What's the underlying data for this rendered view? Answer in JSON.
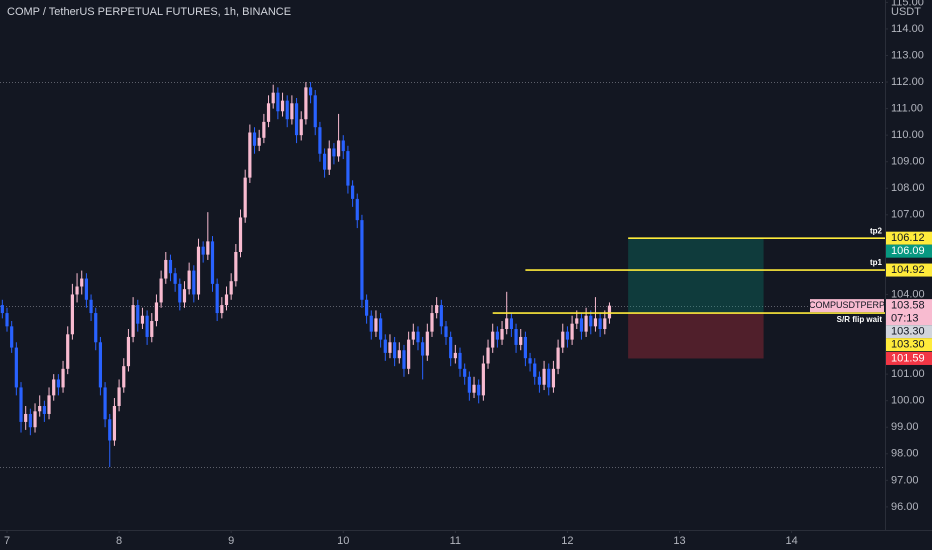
{
  "chart_data": {
    "type": "candlestick",
    "title": "COMP / TetherUS PERPETUAL FUTURES, 1h, BINANCE",
    "currency": "USDT",
    "up_color": "#f8bbd0",
    "down_color": "#2962ff",
    "xlim": [
      -1.5,
      188
    ],
    "ylim": [
      95.13,
      115.09
    ],
    "xticks": [
      {
        "value": 0,
        "label": "7"
      },
      {
        "value": 24,
        "label": "8"
      },
      {
        "value": 48,
        "label": "9"
      },
      {
        "value": 72,
        "label": "10"
      },
      {
        "value": 96,
        "label": "11"
      },
      {
        "value": 120,
        "label": "12"
      },
      {
        "value": 144,
        "label": "13"
      },
      {
        "value": 168,
        "label": "14"
      }
    ],
    "yticks": [
      {
        "value": 96,
        "label": "96.00"
      },
      {
        "value": 97,
        "label": "97.00"
      },
      {
        "value": 98,
        "label": "98.00"
      },
      {
        "value": 99,
        "label": "99.00"
      },
      {
        "value": 100,
        "label": "100.00"
      },
      {
        "value": 101,
        "label": "101.00"
      },
      {
        "value": 102,
        "label": "102.00"
      },
      {
        "value": 103,
        "label": "103.00"
      },
      {
        "value": 104,
        "label": "104.00"
      },
      {
        "value": 105,
        "label": "105.00"
      },
      {
        "value": 106,
        "label": "106.00"
      },
      {
        "value": 107,
        "label": "107.00"
      },
      {
        "value": 108,
        "label": "108.00"
      },
      {
        "value": 109,
        "label": "109.00"
      },
      {
        "value": 110,
        "label": "110.00"
      },
      {
        "value": 111,
        "label": "111.00"
      },
      {
        "value": 112,
        "label": "112.00"
      },
      {
        "value": 113,
        "label": "113.00"
      },
      {
        "value": 114,
        "label": "114.00"
      },
      {
        "value": 115,
        "label": "115.00"
      }
    ],
    "candles": [
      [
        -1,
        103.6,
        103.8,
        103.1,
        103.3
      ],
      [
        0,
        103.3,
        103.5,
        102.6,
        102.8
      ],
      [
        1,
        102.8,
        103,
        101.8,
        102
      ],
      [
        2,
        102,
        102.2,
        100.2,
        100.5
      ],
      [
        3,
        100.5,
        100.7,
        98.8,
        99.2
      ],
      [
        4,
        99.2,
        99.8,
        98.9,
        99.5
      ],
      [
        5,
        99.5,
        99.7,
        98.7,
        99
      ],
      [
        6,
        99,
        99.9,
        98.8,
        99.6
      ],
      [
        7,
        99.6,
        100.2,
        99.4,
        99.8
      ],
      [
        8,
        99.8,
        100,
        99.2,
        99.5
      ],
      [
        9,
        99.5,
        100.5,
        99.3,
        100.2
      ],
      [
        10,
        100.2,
        101,
        100,
        100.8
      ],
      [
        11,
        100.8,
        101,
        100.2,
        100.5
      ],
      [
        12,
        100.5,
        101.5,
        100.3,
        101.2
      ],
      [
        13,
        101.2,
        102.8,
        101,
        102.5
      ],
      [
        14,
        102.5,
        104.4,
        102.3,
        104
      ],
      [
        15,
        104,
        104.8,
        103.7,
        104.3
      ],
      [
        16,
        104.3,
        104.9,
        104,
        104.6
      ],
      [
        17,
        104.6,
        104.8,
        103.5,
        103.8
      ],
      [
        18,
        103.8,
        104,
        103,
        103.3
      ],
      [
        19,
        103.3,
        103.5,
        101.9,
        102.2
      ],
      [
        20,
        102.2,
        102.4,
        100.2,
        100.5
      ],
      [
        21,
        100.5,
        100.7,
        99,
        99.3
      ],
      [
        22,
        99.3,
        99.5,
        97.5,
        98.5
      ],
      [
        23,
        98.5,
        100.1,
        98.3,
        99.8
      ],
      [
        24,
        99.8,
        100.8,
        99.6,
        100.5
      ],
      [
        25,
        100.5,
        101.6,
        100.3,
        101.3
      ],
      [
        26,
        101.3,
        102.7,
        101.1,
        102.4
      ],
      [
        27,
        102.4,
        103.9,
        102.2,
        103.6
      ],
      [
        28,
        103.6,
        103.8,
        102.6,
        102.9
      ],
      [
        29,
        102.9,
        103.5,
        102.7,
        103.2
      ],
      [
        30,
        103.2,
        103.4,
        102.1,
        102.4
      ],
      [
        31,
        102.4,
        103.3,
        102.2,
        103
      ],
      [
        32,
        103,
        104,
        102.8,
        103.7
      ],
      [
        33,
        103.7,
        104.9,
        103.5,
        104.6
      ],
      [
        34,
        104.6,
        105.6,
        104.4,
        105.3
      ],
      [
        35,
        105.3,
        105.5,
        104.5,
        104.8
      ],
      [
        36,
        104.8,
        105,
        104.1,
        104.4
      ],
      [
        37,
        104.4,
        104.6,
        103.4,
        103.7
      ],
      [
        38,
        103.7,
        104.5,
        103.5,
        104.2
      ],
      [
        39,
        104.2,
        105.2,
        104,
        104.9
      ],
      [
        40,
        104.9,
        105.1,
        103.7,
        104
      ],
      [
        41,
        104,
        106.1,
        103.8,
        105.8
      ],
      [
        42,
        105.8,
        106,
        105.2,
        105.5
      ],
      [
        43,
        105.5,
        107.1,
        105.3,
        106
      ],
      [
        44,
        106,
        106.2,
        104.1,
        104.4
      ],
      [
        45,
        104.4,
        104.6,
        103,
        103.3
      ],
      [
        46,
        103.3,
        103.9,
        103.1,
        103.6
      ],
      [
        47,
        103.6,
        104.3,
        103.4,
        104
      ],
      [
        48,
        104,
        104.8,
        103.8,
        104.5
      ],
      [
        49,
        104.5,
        105.9,
        104.3,
        105.6
      ],
      [
        50,
        105.6,
        107.2,
        105.4,
        106.9
      ],
      [
        51,
        106.9,
        108.7,
        106.7,
        108.4
      ],
      [
        52,
        108.4,
        110.4,
        108.2,
        110.1
      ],
      [
        53,
        110.1,
        110.3,
        109.3,
        109.6
      ],
      [
        54,
        109.6,
        110.2,
        109.4,
        109.9
      ],
      [
        55,
        109.9,
        110.8,
        109.7,
        110.5
      ],
      [
        56,
        110.5,
        111.5,
        110.3,
        111.2
      ],
      [
        57,
        111.2,
        111.9,
        111,
        111.6
      ],
      [
        58,
        111.6,
        111.8,
        110.6,
        110.9
      ],
      [
        59,
        110.9,
        111.6,
        110.7,
        111.3
      ],
      [
        60,
        111.3,
        111.5,
        110.3,
        110.6
      ],
      [
        61,
        110.6,
        111.5,
        110.4,
        111.2
      ],
      [
        62,
        111.2,
        111.4,
        109.7,
        110
      ],
      [
        63,
        110,
        110.9,
        109.8,
        110.6
      ],
      [
        64,
        110.6,
        112,
        110.4,
        111.8
      ],
      [
        65,
        111.8,
        112,
        111.2,
        111.5
      ],
      [
        66,
        111.5,
        111.7,
        110,
        110.3
      ],
      [
        67,
        110.3,
        110.5,
        109,
        109.3
      ],
      [
        68,
        109.3,
        109.5,
        108.4,
        108.7
      ],
      [
        69,
        108.7,
        109.8,
        108.5,
        109.5
      ],
      [
        70,
        109.5,
        109.7,
        108.9,
        109.2
      ],
      [
        71,
        109.2,
        110.8,
        109,
        109.8
      ],
      [
        72,
        109.8,
        110,
        109.1,
        109.4
      ],
      [
        73,
        109.4,
        109.6,
        107.8,
        108.1
      ],
      [
        74,
        108.1,
        108.3,
        107.3,
        107.6
      ],
      [
        75,
        107.6,
        107.8,
        106.5,
        106.8
      ],
      [
        76,
        106.8,
        107,
        103.5,
        103.8
      ],
      [
        77,
        103.8,
        104,
        102.9,
        103.2
      ],
      [
        78,
        103.2,
        103.4,
        102.3,
        102.6
      ],
      [
        79,
        102.6,
        103.4,
        102.4,
        103.1
      ],
      [
        80,
        103.1,
        103.3,
        102,
        102.3
      ],
      [
        81,
        102.3,
        102.5,
        101.5,
        101.8
      ],
      [
        82,
        101.8,
        102.5,
        101.6,
        102.2
      ],
      [
        83,
        102.2,
        102.4,
        101.3,
        101.6
      ],
      [
        84,
        101.6,
        102.2,
        101.4,
        101.9
      ],
      [
        85,
        101.9,
        102.1,
        100.9,
        101.2
      ],
      [
        86,
        101.2,
        102.6,
        101,
        102.3
      ],
      [
        87,
        102.3,
        102.9,
        102.1,
        102.6
      ],
      [
        88,
        102.6,
        102.8,
        101.9,
        102.2
      ],
      [
        89,
        102.2,
        102.4,
        100.8,
        101.7
      ],
      [
        90,
        101.7,
        102.9,
        101.5,
        102.6
      ],
      [
        91,
        102.6,
        103.6,
        102.4,
        103.3
      ],
      [
        92,
        103.3,
        103.9,
        103.1,
        103.6
      ],
      [
        93,
        103.6,
        103.8,
        102.5,
        102.8
      ],
      [
        94,
        102.8,
        103,
        102.1,
        102.4
      ],
      [
        95,
        102.4,
        102.6,
        101.3,
        101.6
      ],
      [
        96,
        101.6,
        102.1,
        101.4,
        101.8
      ],
      [
        97,
        101.8,
        102,
        100.9,
        101.2
      ],
      [
        98,
        101.2,
        101.4,
        100.6,
        100.9
      ],
      [
        99,
        100.9,
        101.1,
        100,
        100.3
      ],
      [
        100,
        100.3,
        100.9,
        100.1,
        100.6
      ],
      [
        101,
        100.6,
        100.8,
        99.9,
        100.2
      ],
      [
        102,
        100.2,
        101.7,
        100,
        101.4
      ],
      [
        103,
        101.4,
        102.3,
        101.2,
        102
      ],
      [
        104,
        102,
        102.9,
        101.8,
        102.6
      ],
      [
        105,
        102.6,
        102.8,
        102,
        102.3
      ],
      [
        106,
        102.3,
        103,
        102.1,
        102.7
      ],
      [
        107,
        102.7,
        104.1,
        102.5,
        103.1
      ],
      [
        108,
        103.1,
        103.3,
        102.4,
        102.7
      ],
      [
        109,
        102.7,
        102.9,
        101.8,
        102.1
      ],
      [
        110,
        102.1,
        102.7,
        101.9,
        102.4
      ],
      [
        111,
        102.4,
        102.6,
        101.3,
        101.6
      ],
      [
        112,
        101.6,
        101.8,
        101.1,
        101.4
      ],
      [
        113,
        101.4,
        101.6,
        100.6,
        100.9
      ],
      [
        114,
        100.9,
        101.1,
        100.3,
        100.6
      ],
      [
        115,
        100.6,
        101.5,
        100.4,
        101.2
      ],
      [
        116,
        101.2,
        101.4,
        100.2,
        100.5
      ],
      [
        117,
        100.5,
        101.5,
        100.3,
        101.2
      ],
      [
        118,
        101.2,
        102.3,
        101,
        102
      ],
      [
        119,
        102,
        102.9,
        101.8,
        102.6
      ],
      [
        120,
        102.6,
        102.8,
        102,
        102.3
      ],
      [
        121,
        102.3,
        103.2,
        102.1,
        102.9
      ],
      [
        122,
        102.9,
        103.4,
        102.7,
        103.1
      ],
      [
        123,
        103.1,
        103.3,
        102.3,
        102.6
      ],
      [
        124,
        102.6,
        103.5,
        102.4,
        103.2
      ],
      [
        125,
        103.2,
        103.4,
        102.5,
        102.8
      ],
      [
        126,
        102.8,
        103.9,
        102.6,
        103.1
      ],
      [
        127,
        103.1,
        103.3,
        102.4,
        102.7
      ],
      [
        128,
        102.7,
        103.4,
        102.5,
        103.1
      ],
      [
        129,
        103.1,
        103.7,
        102.9,
        103.58
      ]
    ],
    "dotted_levels": [
      112,
      97.5,
      103.58
    ],
    "levels": [
      {
        "label": "tp2",
        "value": 106.12,
        "from": 133,
        "label_position": "above",
        "color": "#ffeb3b"
      },
      {
        "label": "tp1",
        "value": 104.92,
        "from": 111,
        "label_position": "above",
        "color": "#ffeb3b"
      },
      {
        "label": "S/R flip wait",
        "value": 103.3,
        "from": 104,
        "label_position": "below",
        "color": "#ffeb3b"
      }
    ],
    "position": {
      "x": [
        133,
        162
      ],
      "target": 106.09,
      "entry": 103.3,
      "stop": 101.59
    },
    "current": {
      "symbol": "COMPUSDTPERP",
      "text": "103.58",
      "value": 103.58,
      "countdown": "07:13",
      "color": "#f8bbd0"
    },
    "price_labels": [
      {
        "text": "106.12",
        "value": 106.12,
        "color": "#ffeb3b"
      },
      {
        "text": "106.09",
        "value": 106.09,
        "color": "#089981"
      },
      {
        "text": "104.92",
        "value": 104.92,
        "color": "#ffeb3b"
      },
      {
        "text": "103.30",
        "value": 103.3,
        "color": "#d1d4dc"
      },
      {
        "text": "103.30",
        "value": 103.3,
        "color": "#ffeb3b"
      },
      {
        "text": "101.59",
        "value": 101.59,
        "color": "#f23645"
      }
    ]
  }
}
